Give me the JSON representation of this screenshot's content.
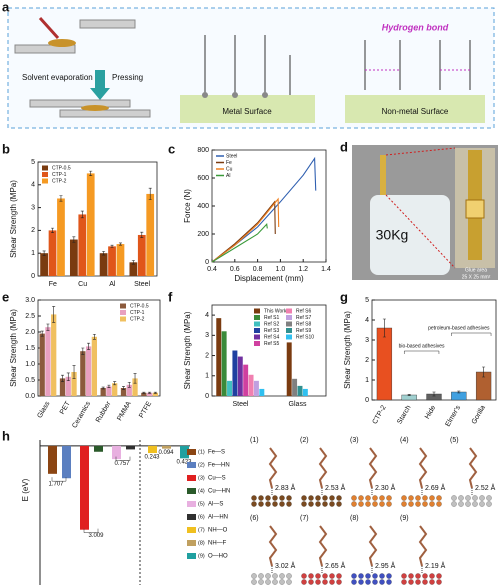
{
  "panels": {
    "a": {
      "label": "a",
      "solvent": "Solvent evaporation",
      "pressing": "Pressing",
      "metal": "Metal Surface",
      "hbond": "Hydrogen bond",
      "nonmetal": "Non-metal Surface"
    },
    "d": {
      "label": "d",
      "weight": "30Kg",
      "glue": "Glue area",
      "size": "25 X 25 mm²"
    },
    "h_structures": [
      {
        "label": "(1)",
        "distance": "2.83 Å"
      },
      {
        "label": "(2)",
        "distance": "2.53 Å"
      },
      {
        "label": "(3)",
        "distance": "2.30 Å"
      },
      {
        "label": "(4)",
        "distance": "2.69 Å"
      },
      {
        "label": "(5)",
        "distance": "2.52 Å"
      },
      {
        "label": "(6)",
        "distance": "3.02 Å"
      },
      {
        "label": "(7)",
        "distance": "2.65 Å"
      },
      {
        "label": "(8)",
        "distance": "2.95 Å"
      },
      {
        "label": "(9)",
        "distance": "2.19 Å"
      }
    ]
  },
  "chart_data": [
    {
      "type": "bar",
      "panel_label": "b",
      "y_label": "Shear Strength (MPa)",
      "categories": [
        "Fe",
        "Cu",
        "Al",
        "Steel"
      ],
      "series": [
        {
          "name": "CTP-0.5",
          "color": "#7a3b10",
          "values": [
            1.0,
            1.6,
            1.0,
            0.6
          ],
          "errors": [
            0.1,
            0.12,
            0.08,
            0.08
          ]
        },
        {
          "name": "CTP-1",
          "color": "#e0561a",
          "values": [
            2.0,
            2.7,
            1.3,
            1.8
          ],
          "errors": [
            0.1,
            0.15,
            0.05,
            0.12
          ]
        },
        {
          "name": "CTP-2",
          "color": "#f59a23",
          "values": [
            3.4,
            4.5,
            1.4,
            3.6
          ],
          "errors": [
            0.12,
            0.1,
            0.05,
            0.25
          ]
        }
      ],
      "ylim": [
        0,
        5
      ],
      "yticks": [
        0,
        1,
        2,
        3,
        4,
        5
      ],
      "legend": "upper left"
    },
    {
      "type": "line",
      "panel_label": "c",
      "x_label": "Displacement (mm)",
      "y_label": "Force (N)",
      "series": [
        {
          "name": "Steel",
          "color": "#2f5fb0",
          "x": [
            0.4,
            0.6,
            0.8,
            1.0,
            1.2,
            1.3,
            1.31
          ],
          "values": [
            0,
            120,
            250,
            430,
            620,
            740,
            510
          ]
        },
        {
          "name": "Fe",
          "color": "#7a3b10",
          "x": [
            0.4,
            0.6,
            0.8,
            0.95,
            0.955
          ],
          "values": [
            0,
            130,
            280,
            430,
            200
          ]
        },
        {
          "name": "Cu",
          "color": "#f08020",
          "x": [
            0.4,
            0.6,
            0.8,
            0.98,
            0.985
          ],
          "values": [
            0,
            120,
            270,
            450,
            250
          ]
        },
        {
          "name": "Al",
          "color": "#3a9a3a",
          "x": [
            0.4,
            0.6,
            0.8,
            0.88,
            0.885
          ],
          "values": [
            0,
            100,
            200,
            270,
            240
          ]
        }
      ],
      "xlim": [
        0.4,
        1.4
      ],
      "xticks": [
        0.4,
        0.6,
        0.8,
        {
          "value": 1.0,
          "label": "1.0"
        },
        1.2,
        1.4
      ],
      "ylim": [
        0,
        800
      ],
      "yticks": [
        0,
        200,
        400,
        600,
        800
      ],
      "legend": "upper left"
    },
    {
      "type": "bar",
      "panel_label": "e",
      "y_label": "Shear Strength (MPa)",
      "categories": [
        "Glass",
        "PET",
        "Ceramics",
        "Rubber",
        "PMMA",
        "PTFE"
      ],
      "series": [
        {
          "name": "CTP-0.5",
          "color": "#8b5a3c",
          "values": [
            1.95,
            0.55,
            1.4,
            0.25,
            0.25,
            0.1
          ],
          "errors": [
            0.08,
            0.1,
            0.1,
            0.03,
            0.05,
            0.02
          ]
        },
        {
          "name": "CTP-1",
          "color": "#e8a0c0",
          "values": [
            2.15,
            0.6,
            1.55,
            0.3,
            0.35,
            0.1
          ],
          "errors": [
            0.1,
            0.12,
            0.1,
            0.04,
            0.08,
            0.02
          ]
        },
        {
          "name": "CTP-2",
          "color": "#f0c060",
          "values": [
            2.55,
            0.75,
            1.85,
            0.4,
            0.55,
            0.1
          ],
          "errors": [
            0.25,
            0.2,
            0.08,
            0.05,
            0.15,
            0.02
          ]
        }
      ],
      "ylim": [
        0,
        3
      ],
      "yticks": [
        {
          "value": 0,
          "label": "0.0"
        },
        0.5,
        {
          "value": 1,
          "label": "1.0"
        },
        1.5,
        {
          "value": 2,
          "label": "2.0"
        },
        2.5,
        {
          "value": 3,
          "label": "3.0"
        }
      ],
      "legend": "upper right"
    },
    {
      "type": "bar",
      "panel_label": "f",
      "y_label": "Shear Strength (MPa)",
      "categories": [
        "Steel",
        "Glass"
      ],
      "series": [
        {
          "name": "This Work",
          "color": "#7a3b10",
          "values": [
            3.85,
            2.65
          ]
        },
        {
          "name": "Ref S1",
          "color": "#3a8a3a",
          "values": [
            3.2,
            null
          ]
        },
        {
          "name": "Ref S2",
          "color": "#40c0c0",
          "values": [
            0.75,
            null
          ]
        },
        {
          "name": "Ref S3",
          "color": "#2040a0",
          "values": [
            2.25,
            null
          ]
        },
        {
          "name": "Ref S4",
          "color": "#7030a0",
          "values": [
            1.95,
            null
          ]
        },
        {
          "name": "Ref S5",
          "color": "#d040a0",
          "values": [
            1.55,
            null
          ]
        },
        {
          "name": "Ref S6",
          "color": "#f080b0",
          "values": [
            1.05,
            null
          ]
        },
        {
          "name": "Ref S7",
          "color": "#c0a0e0",
          "values": [
            0.75,
            null
          ]
        },
        {
          "name": "Ref S8",
          "color": "#808080",
          "values": [
            null,
            0.85
          ]
        },
        {
          "name": "Ref S9",
          "color": "#309090",
          "values": [
            null,
            0.5
          ]
        },
        {
          "name": "Ref S10",
          "color": "#30c0f0",
          "values": [
            0.35,
            0.35
          ]
        }
      ],
      "ylim": [
        0,
        4.5
      ],
      "yticks": [
        0,
        1,
        2,
        3,
        4
      ],
      "legend": "upper right"
    },
    {
      "type": "bar",
      "panel_label": "g",
      "y_label": "Shear Strength (MPa)",
      "categories": [
        "CTP-2",
        "Starch",
        "Hide",
        "Elmer's",
        "Gorilla"
      ],
      "values": [
        3.6,
        0.25,
        0.3,
        0.4,
        1.4
      ],
      "errors": [
        0.45,
        0.03,
        0.1,
        0.05,
        0.25
      ],
      "colors": [
        "#e85020",
        "#a0d0d0",
        "#606060",
        "#40a0e0",
        "#b06030"
      ],
      "annotations": [
        "bio-based adhesives",
        "petroleum-based adhesives"
      ],
      "ylim": [
        0,
        5
      ],
      "yticks": [
        0,
        1,
        2,
        3,
        4,
        5
      ]
    },
    {
      "type": "energy",
      "panel_label": "h",
      "y_label": "E (eV)",
      "legend_numbers": [
        "(1)",
        "(2)",
        "(3)",
        "(4)",
        "(5)",
        "(6)",
        "(7)",
        "(8)",
        "(9)"
      ],
      "categories": [
        "Fe—S",
        "Fe—HN",
        "Cu—S",
        "Cu—HN",
        "Al—S",
        "Al—HN",
        "NH—O",
        "NH—F",
        "O—HO"
      ],
      "values": [
        -0.95,
        -1.1,
        -2.85,
        -0.2,
        -0.45,
        -0.12,
        -0.243,
        -0.094,
        -0.423
      ],
      "colors": [
        "#8b4513",
        "#5b7fc0",
        "#e02020",
        "#2a5a2a",
        "#e8b0e0",
        "#303030",
        "#f0c020",
        "#c0a060",
        "#20a0a0"
      ],
      "annotations": [
        "1.707",
        "3.009",
        "0.757",
        "0.243",
        "0.094",
        "0.423"
      ],
      "groups": [
        "Metal Surface",
        "Non-metal Surface"
      ],
      "ylim": [
        -3.2,
        0.2
      ]
    }
  ]
}
